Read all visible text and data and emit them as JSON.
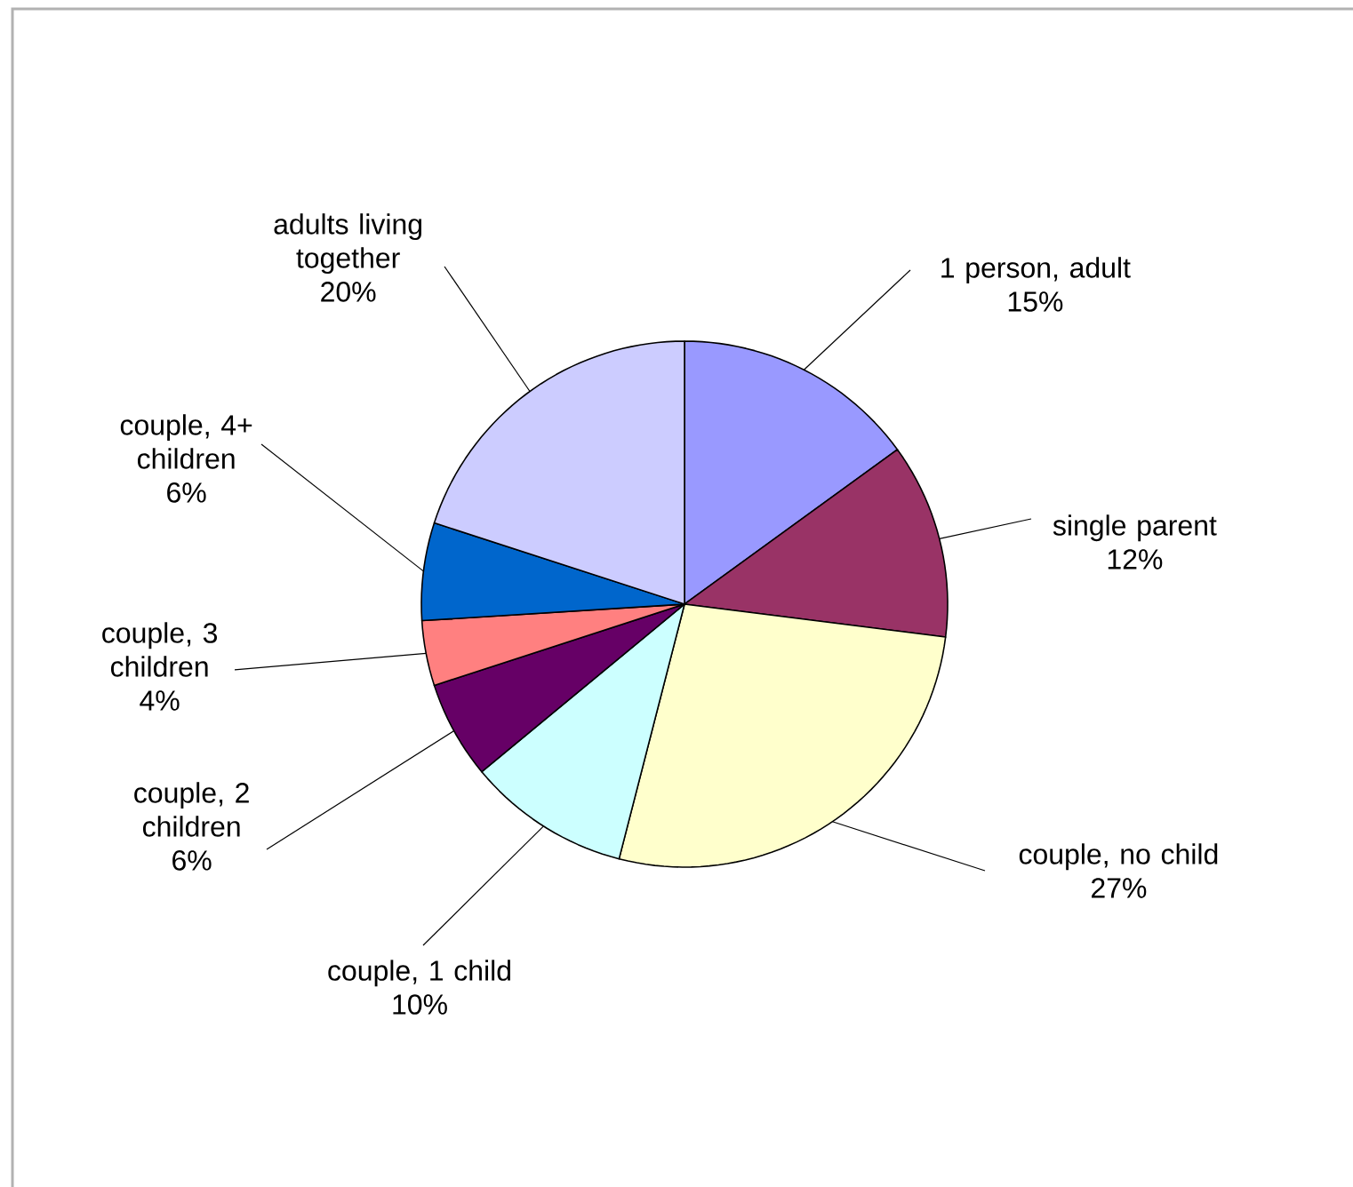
{
  "chart_data": {
    "type": "pie",
    "categories": [
      "1 person, adult",
      "single parent",
      "couple, no child",
      "couple, 1 child",
      "couple, 2 children",
      "couple, 3 children",
      "couple, 4+ children",
      "adults living together"
    ],
    "values": [
      15,
      12,
      27,
      10,
      6,
      4,
      6,
      20
    ],
    "value_labels": [
      "15%",
      "12%",
      "27%",
      "10%",
      "6%",
      "4%",
      "6%",
      "20%"
    ],
    "colors": [
      "#9999ff",
      "#993366",
      "#ffffcc",
      "#ccffff",
      "#660066",
      "#ff8080",
      "#0066cc",
      "#ccccff"
    ]
  }
}
